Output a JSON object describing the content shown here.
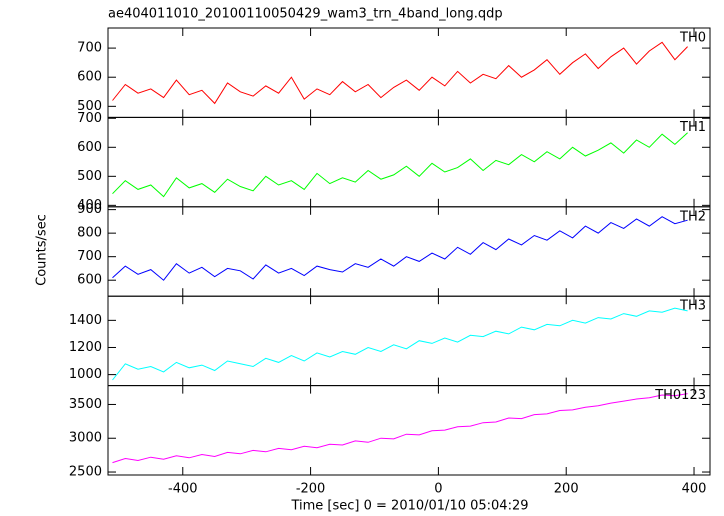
{
  "chart_data": [
    {
      "type": "line",
      "title": "ae404011010_20100110050429_wam3_trn_4band_long.qdp",
      "x": [
        -510,
        -490,
        -470,
        -450,
        -430,
        -410,
        -390,
        -370,
        -350,
        -330,
        -310,
        -290,
        -270,
        -250,
        -230,
        -210,
        -190,
        -170,
        -150,
        -130,
        -110,
        -90,
        -70,
        -50,
        -30,
        -10,
        10,
        30,
        50,
        70,
        90,
        110,
        130,
        150,
        170,
        190,
        210,
        230,
        250,
        270,
        290,
        310,
        330,
        350,
        370,
        390
      ],
      "series": [
        {
          "name": "TH0",
          "color": "#ff0000",
          "values": [
            520,
            575,
            545,
            560,
            530,
            590,
            540,
            555,
            510,
            580,
            550,
            535,
            570,
            545,
            600,
            525,
            560,
            540,
            585,
            550,
            575,
            530,
            565,
            590,
            555,
            600,
            570,
            620,
            580,
            610,
            595,
            640,
            600,
            625,
            660,
            610,
            650,
            680,
            630,
            670,
            700,
            645,
            690,
            720,
            660,
            705
          ]
        }
      ],
      "xlim": [
        -517,
        425
      ],
      "xticks": [
        -400,
        -200,
        0,
        200,
        400
      ],
      "ylim": [
        462,
        769
      ],
      "yticks": [
        500,
        600,
        700
      ]
    },
    {
      "type": "line",
      "x": [
        -510,
        -490,
        -470,
        -450,
        -430,
        -410,
        -390,
        -370,
        -350,
        -330,
        -310,
        -290,
        -270,
        -250,
        -230,
        -210,
        -190,
        -170,
        -150,
        -130,
        -110,
        -90,
        -70,
        -50,
        -30,
        -10,
        10,
        30,
        50,
        70,
        90,
        110,
        130,
        150,
        170,
        190,
        210,
        230,
        250,
        270,
        290,
        310,
        330,
        350,
        370,
        390
      ],
      "series": [
        {
          "name": "TH1",
          "color": "#00ff00",
          "values": [
            440,
            485,
            455,
            470,
            430,
            495,
            460,
            475,
            445,
            490,
            465,
            450,
            500,
            470,
            485,
            455,
            510,
            475,
            495,
            480,
            520,
            490,
            505,
            535,
            500,
            545,
            515,
            530,
            560,
            520,
            555,
            540,
            575,
            550,
            585,
            560,
            600,
            570,
            590,
            615,
            580,
            625,
            600,
            645,
            610,
            650
          ]
        }
      ],
      "xlim": [
        -517,
        425
      ],
      "xticks": [
        -400,
        -200,
        0,
        200,
        400
      ],
      "ylim": [
        395,
        703
      ],
      "yticks": [
        400,
        500,
        600,
        700
      ]
    },
    {
      "type": "line",
      "ylabel": "Counts/sec",
      "x": [
        -510,
        -490,
        -470,
        -450,
        -430,
        -410,
        -390,
        -370,
        -350,
        -330,
        -310,
        -290,
        -270,
        -250,
        -230,
        -210,
        -190,
        -170,
        -150,
        -130,
        -110,
        -90,
        -70,
        -50,
        -30,
        -10,
        10,
        30,
        50,
        70,
        90,
        110,
        130,
        150,
        170,
        190,
        210,
        230,
        250,
        270,
        290,
        310,
        330,
        350,
        370,
        390
      ],
      "series": [
        {
          "name": "TH2",
          "color": "#0000ff",
          "values": [
            610,
            660,
            625,
            645,
            600,
            670,
            630,
            655,
            615,
            650,
            640,
            605,
            665,
            630,
            650,
            620,
            660,
            645,
            635,
            670,
            655,
            690,
            660,
            700,
            680,
            715,
            690,
            740,
            710,
            760,
            730,
            775,
            750,
            790,
            770,
            810,
            780,
            830,
            800,
            845,
            820,
            860,
            830,
            870,
            840,
            855
          ]
        }
      ],
      "xlim": [
        -517,
        425
      ],
      "xticks": [
        -400,
        -200,
        0,
        200,
        400
      ],
      "ylim": [
        532,
        912
      ],
      "yticks": [
        600,
        700,
        800,
        900
      ]
    },
    {
      "type": "line",
      "x": [
        -510,
        -490,
        -470,
        -450,
        -430,
        -410,
        -390,
        -370,
        -350,
        -330,
        -310,
        -290,
        -270,
        -250,
        -230,
        -210,
        -190,
        -170,
        -150,
        -130,
        -110,
        -90,
        -70,
        -50,
        -30,
        -10,
        10,
        30,
        50,
        70,
        90,
        110,
        130,
        150,
        170,
        190,
        210,
        230,
        250,
        270,
        290,
        310,
        330,
        350,
        370,
        390
      ],
      "series": [
        {
          "name": "TH3",
          "color": "#00ffff",
          "values": [
            960,
            1080,
            1040,
            1060,
            1020,
            1090,
            1050,
            1070,
            1030,
            1100,
            1080,
            1060,
            1120,
            1090,
            1140,
            1100,
            1160,
            1130,
            1170,
            1150,
            1200,
            1170,
            1220,
            1190,
            1250,
            1230,
            1270,
            1240,
            1290,
            1280,
            1320,
            1300,
            1350,
            1330,
            1370,
            1360,
            1400,
            1380,
            1420,
            1410,
            1450,
            1430,
            1470,
            1460,
            1490,
            1470
          ]
        }
      ],
      "xlim": [
        -517,
        425
      ],
      "xticks": [
        -400,
        -200,
        0,
        200,
        400
      ],
      "ylim": [
        919,
        1578
      ],
      "yticks": [
        1000,
        1200,
        1400
      ]
    },
    {
      "type": "line",
      "xlabel": "Time [sec] 0 = 2010/01/10 05:04:29",
      "x": [
        -510,
        -490,
        -470,
        -450,
        -430,
        -410,
        -390,
        -370,
        -350,
        -330,
        -310,
        -290,
        -270,
        -250,
        -230,
        -210,
        -190,
        -170,
        -150,
        -130,
        -110,
        -90,
        -70,
        -50,
        -30,
        -10,
        10,
        30,
        50,
        70,
        90,
        110,
        130,
        150,
        170,
        190,
        210,
        230,
        250,
        270,
        290,
        310,
        330,
        350,
        370,
        390
      ],
      "series": [
        {
          "name": "TH0123",
          "color": "#ff00ff",
          "values": [
            2640,
            2700,
            2670,
            2720,
            2690,
            2740,
            2710,
            2760,
            2730,
            2790,
            2770,
            2820,
            2800,
            2850,
            2830,
            2880,
            2860,
            2910,
            2900,
            2960,
            2940,
            3000,
            2990,
            3060,
            3050,
            3110,
            3120,
            3170,
            3180,
            3230,
            3240,
            3300,
            3290,
            3350,
            3360,
            3410,
            3420,
            3460,
            3480,
            3520,
            3550,
            3580,
            3600,
            3640,
            3630,
            3660
          ]
        }
      ],
      "xlim": [
        -517,
        425
      ],
      "xticks": [
        -400,
        -200,
        0,
        200,
        400
      ],
      "ylim": [
        2456,
        3779
      ],
      "yticks": [
        2500,
        3000,
        3500
      ]
    }
  ]
}
